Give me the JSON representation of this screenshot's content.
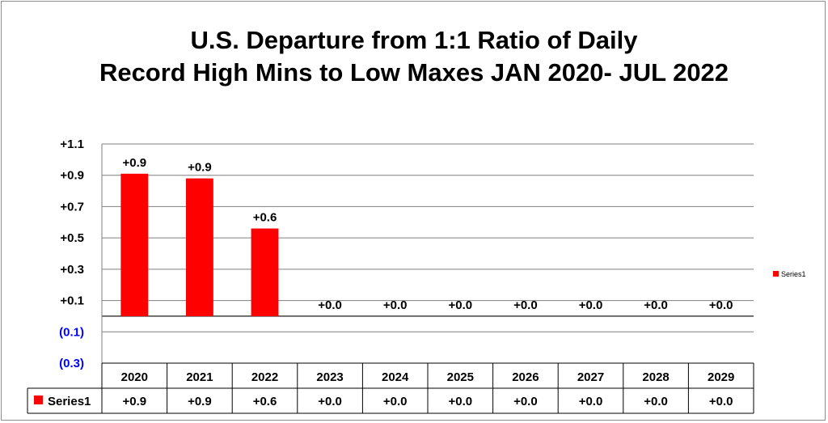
{
  "chart_data": {
    "type": "bar",
    "title_line1": "U.S. Departure from 1:1 Ratio of Daily",
    "title_line2": "Record High Mins to Low Maxes JAN 2020- JUL 2022",
    "categories": [
      "2020",
      "2021",
      "2022",
      "2023",
      "2024",
      "2025",
      "2026",
      "2027",
      "2028",
      "2029"
    ],
    "series": [
      {
        "name": "Series1",
        "values": [
          0.91,
          0.88,
          0.56,
          0.0,
          0.0,
          0.0,
          0.0,
          0.0,
          0.0,
          0.0
        ],
        "labels": [
          "+0.9",
          "+0.9",
          "+0.6",
          "+0.0",
          "+0.0",
          "+0.0",
          "+0.0",
          "+0.0",
          "+0.0",
          "+0.0"
        ],
        "color": "#ff0000"
      }
    ],
    "yticks": [
      {
        "value": 1.1,
        "label": "+1.1",
        "color": "#000000"
      },
      {
        "value": 0.9,
        "label": "+0.9",
        "color": "#000000"
      },
      {
        "value": 0.7,
        "label": "+0.7",
        "color": "#000000"
      },
      {
        "value": 0.5,
        "label": "+0.5",
        "color": "#000000"
      },
      {
        "value": 0.3,
        "label": "+0.3",
        "color": "#000000"
      },
      {
        "value": 0.1,
        "label": "+0.1",
        "color": "#000000"
      },
      {
        "value": -0.1,
        "label": "(0.1)",
        "color": "#0000ff"
      },
      {
        "value": -0.3,
        "label": "(0.3)",
        "color": "#0000ff"
      }
    ],
    "ylim": [
      -0.3,
      1.1
    ],
    "grid": true,
    "legend_position": "right",
    "data_table": true,
    "xlabel": "",
    "ylabel": ""
  }
}
